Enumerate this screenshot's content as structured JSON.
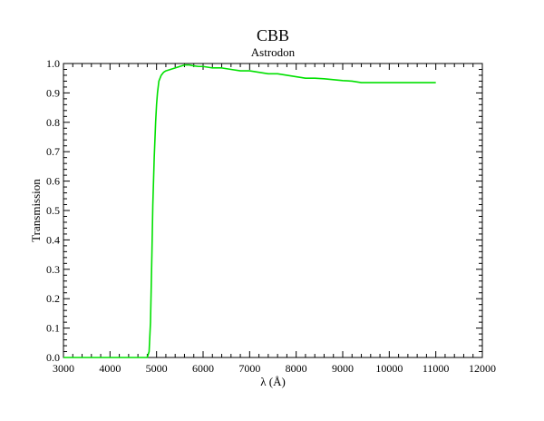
{
  "chart_data": {
    "type": "line",
    "title": "CBB",
    "subtitle": "Astrodon",
    "xlabel": "λ (Å)",
    "ylabel": "Transmission",
    "xlim": [
      3000,
      12000
    ],
    "ylim": [
      0.0,
      1.0
    ],
    "x_ticks": [
      3000,
      4000,
      5000,
      6000,
      7000,
      8000,
      9000,
      10000,
      11000,
      12000
    ],
    "x_tick_labels": [
      "3000",
      "4000",
      "5000",
      "6000",
      "7000",
      "8000",
      "9000",
      "10000",
      "11000",
      "12000"
    ],
    "y_ticks": [
      0.0,
      0.1,
      0.2,
      0.3,
      0.4,
      0.5,
      0.6,
      0.7,
      0.8,
      0.9,
      1.0
    ],
    "y_tick_labels": [
      "0.0",
      "0.1",
      "0.2",
      "0.3",
      "0.4",
      "0.5",
      "0.6",
      "0.7",
      "0.8",
      "0.9",
      "1.0"
    ],
    "grid": false,
    "series": [
      {
        "color": "#00e000",
        "x": [
          3000,
          4000,
          4700,
          4800,
          4840,
          4870,
          4900,
          4920,
          4950,
          4980,
          5000,
          5020,
          5050,
          5100,
          5150,
          5200,
          5300,
          5400,
          5500,
          5600,
          5700,
          5800,
          5900,
          6000,
          6200,
          6400,
          6600,
          6800,
          7000,
          7200,
          7400,
          7600,
          7800,
          8000,
          8200,
          8400,
          8600,
          8800,
          9000,
          9200,
          9400,
          9600,
          9800,
          10000,
          10500,
          11000
        ],
        "y": [
          0.0,
          0.0,
          0.0,
          0.0,
          0.02,
          0.12,
          0.35,
          0.52,
          0.68,
          0.8,
          0.86,
          0.9,
          0.94,
          0.96,
          0.97,
          0.975,
          0.98,
          0.985,
          0.99,
          0.995,
          0.995,
          0.992,
          0.99,
          0.99,
          0.985,
          0.985,
          0.98,
          0.975,
          0.975,
          0.97,
          0.965,
          0.965,
          0.96,
          0.955,
          0.95,
          0.95,
          0.948,
          0.945,
          0.942,
          0.94,
          0.935,
          0.935,
          0.935,
          0.935,
          0.935,
          0.935
        ]
      }
    ]
  }
}
